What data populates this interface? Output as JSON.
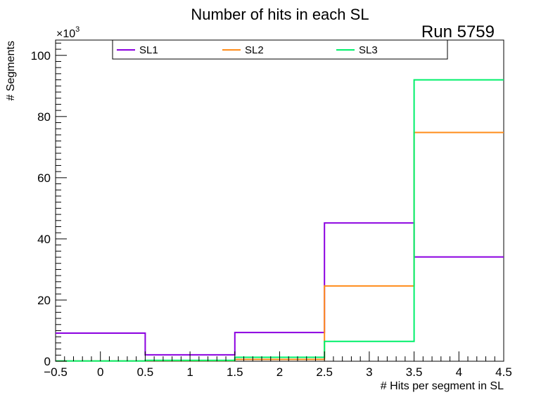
{
  "chart_data": {
    "type": "histogram-step",
    "title": "Number of hits in each SL",
    "run_label": "Run 5759",
    "xlabel": "# Hits per segment in SL",
    "ylabel": "# Segments",
    "y_multiplier_base": "×10",
    "y_multiplier_exp": "3",
    "xlim": [
      -0.5,
      4.5
    ],
    "ylim": [
      0,
      105
    ],
    "x_ticks": [
      -0.5,
      0,
      0.5,
      1,
      1.5,
      2,
      2.5,
      3,
      3.5,
      4,
      4.5
    ],
    "x_tick_labels": [
      "−0.5",
      "0",
      "0.5",
      "1",
      "1.5",
      "2",
      "2.5",
      "3",
      "3.5",
      "4",
      "4.5"
    ],
    "y_ticks": [
      0,
      20,
      40,
      60,
      80,
      100
    ],
    "y_tick_labels": [
      "0",
      "20",
      "40",
      "60",
      "80",
      "100"
    ],
    "bin_edges": [
      -0.5,
      0.5,
      1.5,
      2.5,
      3.5,
      4.5
    ],
    "series": [
      {
        "name": "SL1",
        "color": "#8b00e0",
        "values": [
          9.2,
          2.1,
          9.4,
          45.2,
          34.1
        ]
      },
      {
        "name": "SL2",
        "color": "#ff8c1a",
        "values": [
          0.1,
          0.2,
          0.6,
          24.6,
          74.8
        ]
      },
      {
        "name": "SL3",
        "color": "#00f06a",
        "values": [
          0.1,
          0.3,
          1.3,
          6.5,
          92.0
        ]
      }
    ],
    "legend": {
      "placement": "top",
      "entries": [
        "SL1",
        "SL2",
        "SL3"
      ]
    }
  }
}
